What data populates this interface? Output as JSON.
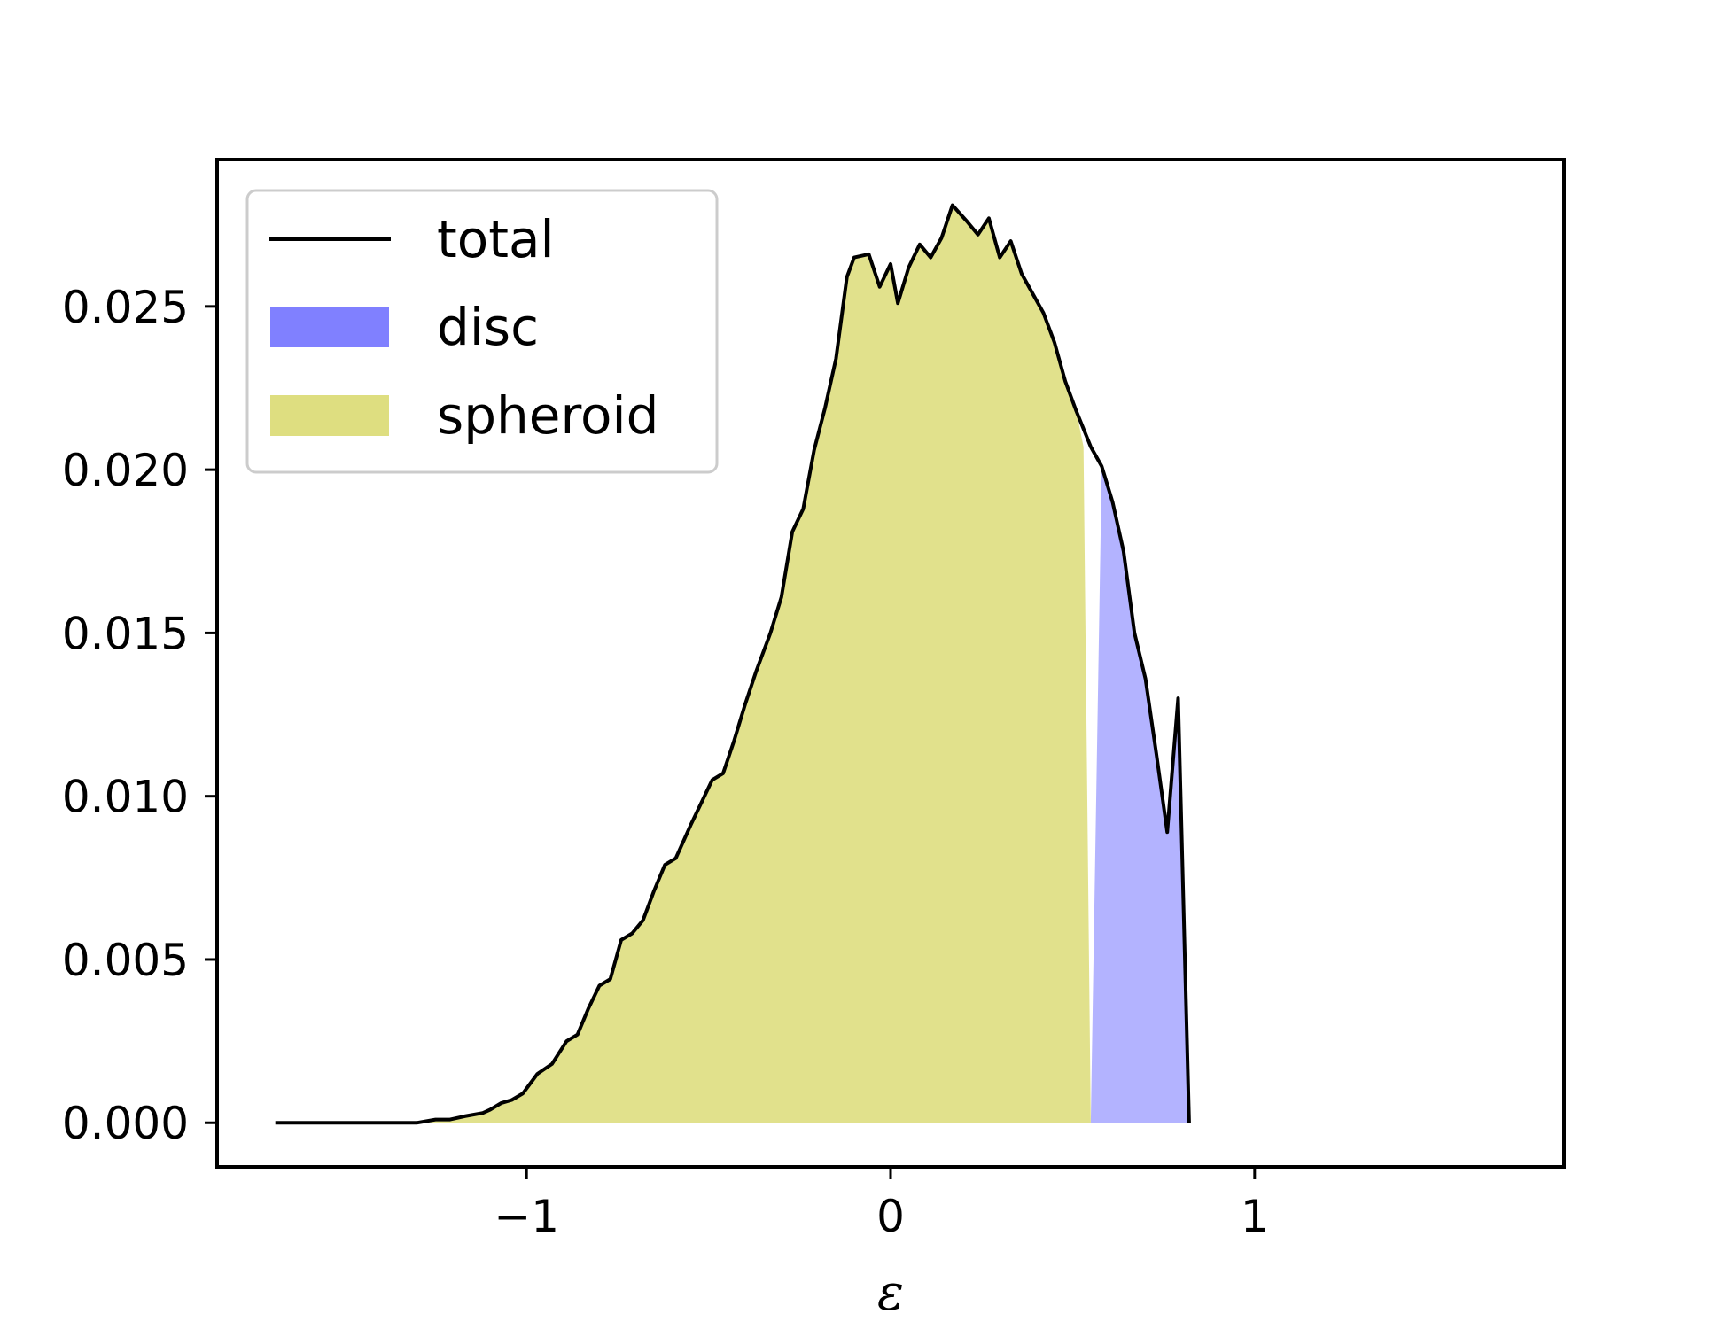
{
  "chart_data": {
    "type": "area",
    "title": "",
    "xlabel": "ε",
    "ylabel": "",
    "xlim": [
      -1.85,
      1.85
    ],
    "ylim": [
      -0.00135,
      0.0295
    ],
    "x_ticks": [
      {
        "value": -1,
        "label": "−1"
      },
      {
        "value": 0,
        "label": "0"
      },
      {
        "value": 1,
        "label": "1"
      }
    ],
    "y_ticks": [
      {
        "value": 0.0,
        "label": "0.000"
      },
      {
        "value": 0.005,
        "label": "0.005"
      },
      {
        "value": 0.01,
        "label": "0.010"
      },
      {
        "value": 0.015,
        "label": "0.015"
      },
      {
        "value": 0.02,
        "label": "0.020"
      },
      {
        "value": 0.025,
        "label": "0.025"
      }
    ],
    "grid": false,
    "legend_position": "upper-left",
    "series": [
      {
        "name": "total",
        "kind": "line",
        "color": "#000000",
        "points": [
          [
            -1.69,
            0.0
          ],
          [
            -1.5,
            0.0
          ],
          [
            -1.38,
            0.0
          ],
          [
            -1.3,
            0.0
          ],
          [
            -1.25,
            0.0001
          ],
          [
            -1.21,
            0.0001
          ],
          [
            -1.17,
            0.0002
          ],
          [
            -1.12,
            0.0003
          ],
          [
            -1.1,
            0.0004
          ],
          [
            -1.07,
            0.0006
          ],
          [
            -1.04,
            0.0007
          ],
          [
            -1.01,
            0.0009
          ],
          [
            -0.97,
            0.0015
          ],
          [
            -0.93,
            0.0018
          ],
          [
            -0.89,
            0.0025
          ],
          [
            -0.86,
            0.0027
          ],
          [
            -0.83,
            0.0035
          ],
          [
            -0.8,
            0.0042
          ],
          [
            -0.77,
            0.0044
          ],
          [
            -0.74,
            0.0056
          ],
          [
            -0.71,
            0.0058
          ],
          [
            -0.68,
            0.0062
          ],
          [
            -0.65,
            0.0071
          ],
          [
            -0.62,
            0.0079
          ],
          [
            -0.59,
            0.0081
          ],
          [
            -0.55,
            0.0091
          ],
          [
            -0.52,
            0.0098
          ],
          [
            -0.49,
            0.0105
          ],
          [
            -0.46,
            0.0107
          ],
          [
            -0.43,
            0.0117
          ],
          [
            -0.4,
            0.0128
          ],
          [
            -0.37,
            0.0138
          ],
          [
            -0.33,
            0.015
          ],
          [
            -0.3,
            0.0161
          ],
          [
            -0.27,
            0.0181
          ],
          [
            -0.24,
            0.0188
          ],
          [
            -0.21,
            0.0206
          ],
          [
            -0.18,
            0.0219
          ],
          [
            -0.15,
            0.0234
          ],
          [
            -0.12,
            0.0259
          ],
          [
            -0.1,
            0.0265
          ],
          [
            -0.06,
            0.0266
          ],
          [
            -0.03,
            0.0256
          ],
          [
            0.0,
            0.0263
          ],
          [
            0.02,
            0.0251
          ],
          [
            0.05,
            0.0262
          ],
          [
            0.08,
            0.0269
          ],
          [
            0.11,
            0.0265
          ],
          [
            0.14,
            0.0271
          ],
          [
            0.17,
            0.0281
          ],
          [
            0.21,
            0.0276
          ],
          [
            0.24,
            0.0272
          ],
          [
            0.27,
            0.0277
          ],
          [
            0.3,
            0.0265
          ],
          [
            0.33,
            0.027
          ],
          [
            0.36,
            0.026
          ],
          [
            0.39,
            0.0254
          ],
          [
            0.42,
            0.0248
          ],
          [
            0.45,
            0.0239
          ],
          [
            0.48,
            0.0227
          ],
          [
            0.51,
            0.0218
          ],
          [
            0.55,
            0.0207
          ],
          [
            0.58,
            0.0201
          ],
          [
            0.61,
            0.019
          ],
          [
            0.64,
            0.0175
          ],
          [
            0.67,
            0.015
          ],
          [
            0.7,
            0.0136
          ],
          [
            0.73,
            0.0113
          ],
          [
            0.76,
            0.0089
          ],
          [
            0.79,
            0.013
          ],
          [
            0.82,
            0.0
          ]
        ]
      },
      {
        "name": "disc",
        "kind": "fill",
        "color": "#8080ff",
        "points": [
          [
            0.55,
            0.0
          ],
          [
            0.58,
            0.0201
          ],
          [
            0.61,
            0.019
          ],
          [
            0.64,
            0.0175
          ],
          [
            0.67,
            0.015
          ],
          [
            0.7,
            0.0136
          ],
          [
            0.73,
            0.0113
          ],
          [
            0.76,
            0.0089
          ],
          [
            0.79,
            0.013
          ],
          [
            0.82,
            0.0
          ]
        ]
      },
      {
        "name": "spheroid",
        "kind": "fill",
        "color": "#dede80",
        "points": [
          [
            -1.69,
            0.0
          ],
          [
            -1.5,
            0.0
          ],
          [
            -1.38,
            0.0
          ],
          [
            -1.3,
            0.0
          ],
          [
            -1.25,
            0.0001
          ],
          [
            -1.21,
            0.0001
          ],
          [
            -1.17,
            0.0002
          ],
          [
            -1.12,
            0.0003
          ],
          [
            -1.1,
            0.0004
          ],
          [
            -1.07,
            0.0006
          ],
          [
            -1.04,
            0.0007
          ],
          [
            -1.01,
            0.0009
          ],
          [
            -0.97,
            0.0015
          ],
          [
            -0.93,
            0.0018
          ],
          [
            -0.89,
            0.0025
          ],
          [
            -0.86,
            0.0027
          ],
          [
            -0.83,
            0.0035
          ],
          [
            -0.8,
            0.0042
          ],
          [
            -0.77,
            0.0044
          ],
          [
            -0.74,
            0.0056
          ],
          [
            -0.71,
            0.0058
          ],
          [
            -0.68,
            0.0062
          ],
          [
            -0.65,
            0.0071
          ],
          [
            -0.62,
            0.0079
          ],
          [
            -0.59,
            0.0081
          ],
          [
            -0.55,
            0.0091
          ],
          [
            -0.52,
            0.0098
          ],
          [
            -0.49,
            0.0105
          ],
          [
            -0.46,
            0.0107
          ],
          [
            -0.43,
            0.0117
          ],
          [
            -0.4,
            0.0128
          ],
          [
            -0.37,
            0.0138
          ],
          [
            -0.33,
            0.015
          ],
          [
            -0.3,
            0.0161
          ],
          [
            -0.27,
            0.0181
          ],
          [
            -0.24,
            0.0188
          ],
          [
            -0.21,
            0.0206
          ],
          [
            -0.18,
            0.0219
          ],
          [
            -0.15,
            0.0234
          ],
          [
            -0.12,
            0.0259
          ],
          [
            -0.1,
            0.0265
          ],
          [
            -0.06,
            0.0266
          ],
          [
            -0.03,
            0.0256
          ],
          [
            0.0,
            0.0263
          ],
          [
            0.02,
            0.0251
          ],
          [
            0.05,
            0.0262
          ],
          [
            0.08,
            0.0269
          ],
          [
            0.11,
            0.0265
          ],
          [
            0.14,
            0.0271
          ],
          [
            0.17,
            0.0281
          ],
          [
            0.21,
            0.0276
          ],
          [
            0.24,
            0.0272
          ],
          [
            0.27,
            0.0277
          ],
          [
            0.3,
            0.0265
          ],
          [
            0.33,
            0.027
          ],
          [
            0.36,
            0.026
          ],
          [
            0.39,
            0.0254
          ],
          [
            0.42,
            0.0248
          ],
          [
            0.45,
            0.0239
          ],
          [
            0.48,
            0.0227
          ],
          [
            0.51,
            0.0218
          ],
          [
            0.53,
            0.0207
          ],
          [
            0.55,
            0.0
          ]
        ]
      }
    ],
    "legend": [
      {
        "label": "total",
        "kind": "line",
        "color": "#000000"
      },
      {
        "label": "disc",
        "kind": "patch",
        "color": "#8080ff"
      },
      {
        "label": "spheroid",
        "kind": "patch",
        "color": "#dede80"
      }
    ]
  }
}
